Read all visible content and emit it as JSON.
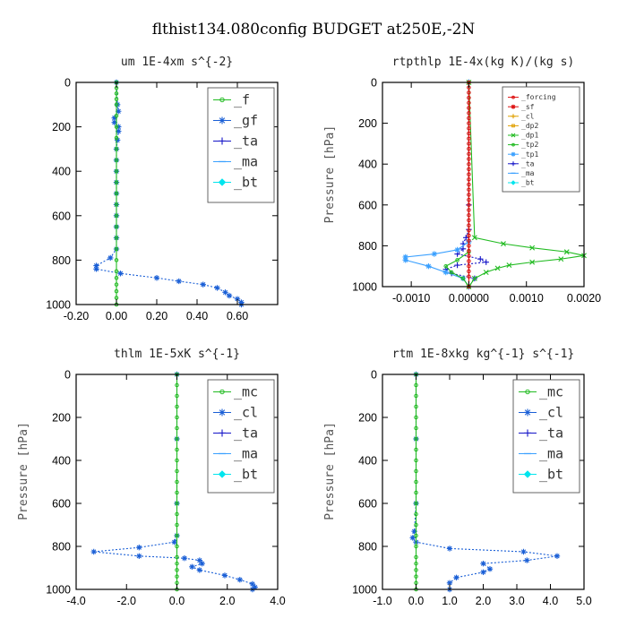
{
  "figure_title": "flthist134.080config  BUDGET at250E,-2N",
  "colors": {
    "green": "#22bb22",
    "blue": "#1a5fd6",
    "lightblue": "#3aa0ff",
    "darkblue": "#1515c8",
    "red": "#dd1111",
    "orange": "#e0a000",
    "cyan": "#00e5ee",
    "purple": "#9b30c8"
  },
  "chart_data": [
    {
      "type": "line",
      "title": "um   1E-4xm s^{-2}",
      "xlabel": "",
      "ylabel": "",
      "xlim": [
        -0.2,
        0.8
      ],
      "ylim": [
        1000,
        0
      ],
      "xticks": [
        "-0.20",
        "0.00",
        "0.20",
        "0.40",
        "0.60"
      ],
      "xtick_values": [
        -0.2,
        0.0,
        0.2,
        0.4,
        0.6
      ],
      "yticks": [
        "0",
        "200",
        "400",
        "600",
        "800",
        "1000"
      ],
      "ytick_values": [
        0,
        200,
        400,
        600,
        800,
        1000
      ],
      "show_ylabel": false,
      "legend": {
        "placement": "top-right",
        "entries": [
          {
            "label": "_f",
            "color": "green",
            "marker": "circle"
          },
          {
            "label": "_gf",
            "color": "blue",
            "marker": "star"
          },
          {
            "label": "_ta",
            "color": "darkblue",
            "marker": "plus"
          },
          {
            "label": "_ma",
            "color": "lightblue",
            "marker": "dash"
          },
          {
            "label": "_bt",
            "color": "cyan",
            "marker": "diamond"
          }
        ]
      },
      "series": [
        {
          "key": "gf",
          "color": "blue",
          "marker": "star",
          "dashed": true,
          "x": [
            0,
            0.005,
            0.01,
            -0.01,
            -0.01,
            0.01,
            0.01,
            0.005,
            0,
            0,
            0,
            0,
            0,
            0,
            0,
            0,
            0,
            0,
            -0.03,
            -0.1,
            -0.1,
            0.02,
            0.2,
            0.31,
            0.43,
            0.5,
            0.54,
            0.56,
            0.6,
            0.62,
            0.62
          ],
          "y": [
            0,
            100,
            130,
            160,
            180,
            200,
            220,
            260,
            300,
            350,
            400,
            450,
            500,
            550,
            600,
            650,
            700,
            750,
            790,
            825,
            840,
            860,
            880,
            895,
            910,
            925,
            945,
            960,
            975,
            990,
            1000
          ]
        },
        {
          "key": "f",
          "color": "green",
          "marker": "circle",
          "dashed": false,
          "x": [
            0,
            0,
            0,
            0,
            0,
            0,
            0,
            0,
            0,
            0,
            0,
            0,
            0,
            0,
            0,
            0,
            0,
            0,
            0,
            0,
            0,
            0,
            0,
            0,
            0
          ],
          "y": [
            0,
            25,
            50,
            75,
            100,
            150,
            200,
            250,
            300,
            350,
            400,
            450,
            500,
            550,
            600,
            650,
            700,
            750,
            800,
            850,
            880,
            910,
            940,
            970,
            1000
          ]
        }
      ]
    },
    {
      "type": "line",
      "title": "rtpthlp   1E-4x(kg K)/(kg s)",
      "xlabel": "",
      "ylabel": "Pressure [hPa]",
      "xlim": [
        -0.0015,
        0.002
      ],
      "ylim": [
        1000,
        0
      ],
      "xticks": [
        "-0.0010",
        "0.00000",
        "0.0010",
        "0.0020"
      ],
      "xtick_values": [
        -0.001,
        0.0,
        0.001,
        0.002
      ],
      "yticks": [
        "0",
        "200",
        "400",
        "600",
        "800",
        "1000"
      ],
      "ytick_values": [
        0,
        200,
        400,
        600,
        800,
        1000
      ],
      "show_ylabel": true,
      "legend": {
        "placement": "top-right",
        "entries": [
          {
            "label": "_forcing",
            "color": "red",
            "marker": "circle"
          },
          {
            "label": "_sf",
            "color": "red",
            "marker": "star"
          },
          {
            "label": "_cl",
            "color": "orange",
            "marker": "plus"
          },
          {
            "label": "_dp2",
            "color": "orange",
            "marker": "square"
          },
          {
            "label": "_dp1",
            "color": "green",
            "marker": "cross"
          },
          {
            "label": "_tp2",
            "color": "green",
            "marker": "circle"
          },
          {
            "label": "_tp1",
            "color": "lightblue",
            "marker": "star"
          },
          {
            "label": "_ta",
            "color": "darkblue",
            "marker": "plus"
          },
          {
            "label": "_ma",
            "color": "lightblue",
            "marker": "dash"
          },
          {
            "label": "_bt",
            "color": "cyan",
            "marker": "diamond"
          }
        ]
      },
      "series": [
        {
          "key": "ta",
          "color": "darkblue",
          "marker": "plus",
          "dashed": true,
          "x": [
            0,
            0,
            0,
            -5e-05,
            -0.0001,
            -0.0001,
            -0.0002,
            0.0002,
            0.0003,
            -0.0002,
            -0.0004,
            -0.0003,
            0.0001,
            0
          ],
          "y": [
            0,
            600,
            720,
            760,
            790,
            815,
            840,
            865,
            880,
            895,
            915,
            935,
            960,
            1000
          ]
        },
        {
          "key": "tp1",
          "color": "lightblue",
          "marker": "star",
          "dashed": false,
          "x": [
            0,
            0,
            -0.0002,
            -0.0006,
            -0.0011,
            -0.0011,
            -0.0007,
            -0.0004,
            -0.0001,
            0
          ],
          "y": [
            0,
            780,
            820,
            840,
            855,
            870,
            900,
            930,
            960,
            1000
          ]
        },
        {
          "key": "tp2",
          "color": "green",
          "marker": "circle",
          "dashed": false,
          "x": [
            0,
            0,
            -0.0002,
            -0.0004,
            -0.0003,
            -0.0001,
            0
          ],
          "y": [
            0,
            830,
            870,
            900,
            930,
            960,
            1000
          ]
        },
        {
          "key": "dp1",
          "color": "green",
          "marker": "cross",
          "dashed": false,
          "x": [
            0,
            0.0001,
            0.0006,
            0.0011,
            0.0017,
            0.002,
            0.0016,
            0.0011,
            0.0007,
            0.0005,
            0.0003,
            0.0001,
            0
          ],
          "y": [
            0,
            760,
            790,
            810,
            830,
            848,
            865,
            880,
            895,
            910,
            930,
            960,
            1000
          ]
        },
        {
          "key": "forcing",
          "color": "red",
          "marker": "circle",
          "dashed": false,
          "x": [
            0,
            0,
            0,
            0,
            0,
            0,
            0,
            0,
            0,
            0,
            0,
            0,
            0,
            0,
            0,
            0,
            0,
            0,
            0,
            0,
            0,
            0,
            0,
            0,
            0,
            0,
            0,
            0,
            0,
            0,
            0,
            0,
            0,
            0,
            0,
            0,
            0,
            0,
            0,
            0
          ],
          "y": [
            0,
            25,
            50,
            75,
            100,
            125,
            150,
            175,
            200,
            225,
            250,
            275,
            300,
            325,
            350,
            375,
            400,
            425,
            450,
            475,
            500,
            525,
            550,
            575,
            600,
            625,
            650,
            675,
            700,
            725,
            750,
            775,
            800,
            825,
            850,
            875,
            900,
            925,
            950,
            1000
          ]
        }
      ]
    },
    {
      "type": "line",
      "title": "thlm   1E-5xK s^{-1}",
      "xlabel": "",
      "ylabel": "Pressure [hPa]",
      "xlim": [
        -4.0,
        4.0
      ],
      "ylim": [
        1000,
        0
      ],
      "xticks": [
        "-4.0",
        "-2.0",
        "0.0",
        "2.0",
        "4.0"
      ],
      "xtick_values": [
        -4.0,
        -2.0,
        0.0,
        2.0,
        4.0
      ],
      "yticks": [
        "0",
        "200",
        "400",
        "600",
        "800",
        "1000"
      ],
      "ytick_values": [
        0,
        200,
        400,
        600,
        800,
        1000
      ],
      "show_ylabel": true,
      "legend": {
        "placement": "top-right",
        "entries": [
          {
            "label": "_mc",
            "color": "green",
            "marker": "circle"
          },
          {
            "label": "_cl",
            "color": "blue",
            "marker": "star"
          },
          {
            "label": "_ta",
            "color": "darkblue",
            "marker": "plus"
          },
          {
            "label": "_ma",
            "color": "lightblue",
            "marker": "dash"
          },
          {
            "label": "_bt",
            "color": "cyan",
            "marker": "diamond"
          }
        ]
      },
      "series": [
        {
          "key": "cl",
          "color": "blue",
          "marker": "star",
          "dashed": true,
          "x": [
            0,
            0,
            0,
            0,
            -0.1,
            -1.5,
            -3.3,
            -1.5,
            0.3,
            0.9,
            1.0,
            0.6,
            0.9,
            1.9,
            2.5,
            3.0,
            3.1,
            3.0
          ],
          "y": [
            0,
            300,
            600,
            750,
            780,
            805,
            825,
            845,
            855,
            865,
            880,
            895,
            910,
            935,
            955,
            975,
            990,
            1000
          ]
        },
        {
          "key": "mc",
          "color": "green",
          "marker": "circle",
          "dashed": false,
          "x": [
            0,
            0,
            0,
            0,
            0,
            0,
            0,
            0,
            0,
            0,
            0,
            0,
            0,
            0,
            0,
            0,
            0,
            0,
            0,
            0,
            0,
            0,
            0
          ],
          "y": [
            0,
            50,
            100,
            150,
            200,
            250,
            300,
            350,
            400,
            450,
            500,
            550,
            600,
            650,
            700,
            750,
            800,
            850,
            880,
            910,
            940,
            970,
            1000
          ]
        }
      ]
    },
    {
      "type": "line",
      "title": "rtm   1E-8xkg kg^{-1} s^{-1}",
      "xlabel": "",
      "ylabel": "Pressure [hPa]",
      "xlim": [
        -1.0,
        5.0
      ],
      "ylim": [
        1000,
        0
      ],
      "xticks": [
        "-1.0",
        "0.0",
        "1.0",
        "2.0",
        "3.0",
        "4.0",
        "5.0"
      ],
      "xtick_values": [
        -1.0,
        0.0,
        1.0,
        2.0,
        3.0,
        4.0,
        5.0
      ],
      "yticks": [
        "0",
        "200",
        "400",
        "600",
        "800",
        "1000"
      ],
      "ytick_values": [
        0,
        200,
        400,
        600,
        800,
        1000
      ],
      "show_ylabel": true,
      "legend": {
        "placement": "top-right",
        "entries": [
          {
            "label": "_mc",
            "color": "green",
            "marker": "circle"
          },
          {
            "label": "_cl",
            "color": "blue",
            "marker": "star"
          },
          {
            "label": "_ta",
            "color": "darkblue",
            "marker": "plus"
          },
          {
            "label": "_ma",
            "color": "lightblue",
            "marker": "dash"
          },
          {
            "label": "_bt",
            "color": "cyan",
            "marker": "diamond"
          }
        ]
      },
      "series": [
        {
          "key": "cl",
          "color": "blue",
          "marker": "star",
          "dashed": true,
          "x": [
            0,
            0,
            0,
            -0.05,
            -0.1,
            0,
            1.0,
            3.2,
            4.2,
            3.3,
            2.0,
            2.2,
            2.0,
            1.2,
            1.0,
            1.0
          ],
          "y": [
            0,
            300,
            600,
            730,
            760,
            780,
            810,
            825,
            845,
            865,
            880,
            905,
            920,
            945,
            970,
            1000
          ]
        },
        {
          "key": "mc",
          "color": "green",
          "marker": "circle",
          "dashed": false,
          "x": [
            0,
            0,
            0,
            0,
            0,
            0,
            0,
            0,
            0,
            0,
            0,
            0,
            0,
            0,
            0,
            0,
            0,
            0,
            0,
            0,
            0,
            0,
            0
          ],
          "y": [
            0,
            50,
            100,
            150,
            200,
            250,
            300,
            350,
            400,
            450,
            500,
            550,
            600,
            650,
            700,
            750,
            800,
            850,
            880,
            910,
            940,
            970,
            1000
          ]
        }
      ]
    }
  ]
}
